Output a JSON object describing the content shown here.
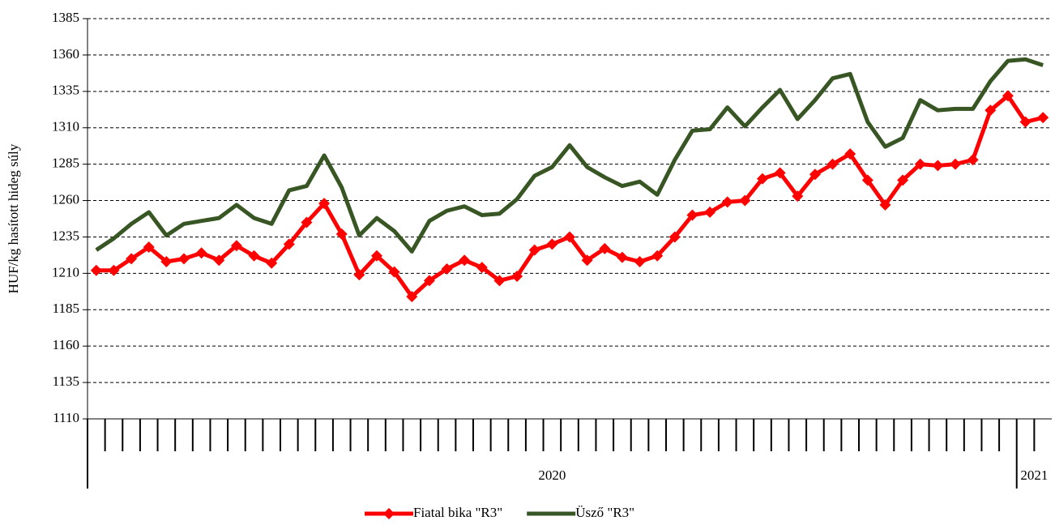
{
  "chart_data": {
    "type": "line",
    "y_label": "HUF/kg hasított hideg súly",
    "categories": [
      null,
      null,
      null,
      null,
      null,
      null,
      null,
      null,
      null,
      null,
      null,
      null,
      null,
      null,
      null,
      null,
      null,
      null,
      null,
      null,
      null,
      null,
      null,
      null,
      null,
      null,
      null,
      null,
      null,
      null,
      null,
      null,
      null,
      null,
      null,
      null,
      null,
      null,
      null,
      null,
      null,
      null,
      null,
      null,
      null,
      null,
      null,
      null,
      null,
      null,
      null,
      null,
      null,
      null,
      null
    ],
    "category_groups": [
      "2020",
      "2020",
      "2020",
      "2020",
      "2020",
      "2020",
      "2020",
      "2020",
      "2020",
      "2020",
      "2020",
      "2020",
      "2020",
      "2020",
      "2020",
      "2020",
      "2020",
      "2020",
      "2020",
      "2020",
      "2020",
      "2020",
      "2020",
      "2020",
      "2020",
      "2020",
      "2020",
      "2020",
      "2020",
      "2020",
      "2020",
      "2020",
      "2020",
      "2020",
      "2020",
      "2020",
      "2020",
      "2020",
      "2020",
      "2020",
      "2020",
      "2020",
      "2020",
      "2020",
      "2020",
      "2020",
      "2020",
      "2020",
      "2020",
      "2020",
      "2020",
      "2020",
      "2020",
      "2021",
      "2021"
    ],
    "series": [
      {
        "name": "Fiatal bika \"R3\"",
        "color": "#ff0000",
        "marker": "diamond",
        "values": [
          1212,
          1212,
          1220,
          1228,
          1218,
          1220,
          1224,
          1219,
          1229,
          1222,
          1217,
          1230,
          1245,
          1258,
          1237,
          1209,
          1222,
          1211,
          1194,
          1205,
          1213,
          1219,
          1214,
          1205,
          1208,
          1226,
          1230,
          1235,
          1219,
          1227,
          1221,
          1218,
          1222,
          1235,
          1250,
          1252,
          1259,
          1260,
          1275,
          1279,
          1263,
          1278,
          1285,
          1292,
          1274,
          1257,
          1274,
          1285,
          1284,
          1285,
          1288,
          1322,
          1332,
          1314,
          1317
        ]
      },
      {
        "name": "Üsző \"R3\"",
        "color": "#375623",
        "marker": null,
        "values": [
          1226,
          1234,
          1244,
          1252,
          1236,
          1244,
          1246,
          1248,
          1257,
          1248,
          1244,
          1267,
          1270,
          1291,
          1269,
          1236,
          1248,
          1239,
          1225,
          1246,
          1253,
          1256,
          1250,
          1251,
          1261,
          1277,
          1283,
          1298,
          1283,
          1276,
          1270,
          1273,
          1264,
          1288,
          1308,
          1309,
          1324,
          1311,
          1324,
          1336,
          1316,
          1329,
          1344,
          1347,
          1314,
          1297,
          1303,
          1329,
          1322,
          1323,
          1323,
          1342,
          1356,
          1357,
          1353
        ]
      }
    ],
    "ylim": [
      1110,
      1385
    ],
    "yticks": [
      1110,
      1135,
      1160,
      1185,
      1210,
      1235,
      1260,
      1285,
      1310,
      1335,
      1360,
      1385
    ],
    "grid": true,
    "legend": "bottom"
  }
}
